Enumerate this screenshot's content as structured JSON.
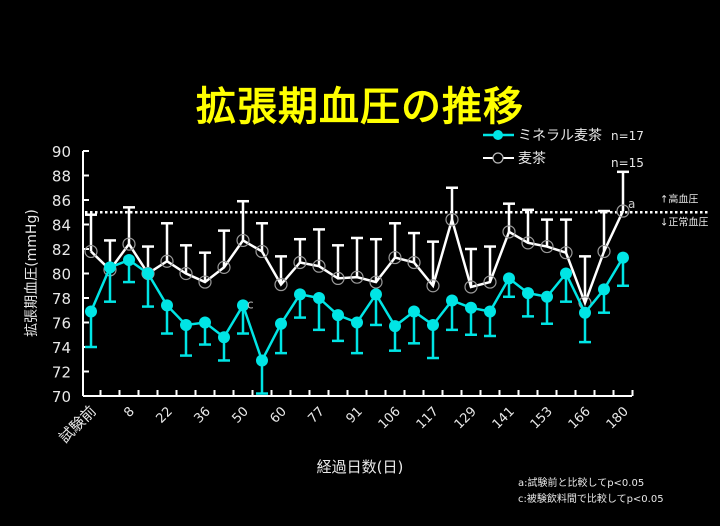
{
  "title": "拡張期血圧の推移",
  "chart_data": {
    "type": "line",
    "title": "拡張期血圧の推移",
    "xlabel": "経過日数(日)",
    "ylabel": "拡張期血圧(mmHg)",
    "ylim": [
      70,
      90
    ],
    "yticks": [
      70,
      72,
      74,
      76,
      78,
      80,
      82,
      84,
      86,
      88,
      90
    ],
    "x_tick_labels": [
      "試験前",
      "8",
      "22",
      "36",
      "50",
      "60",
      "77",
      "91",
      "106",
      "117",
      "129",
      "141",
      "153",
      "166",
      "180"
    ],
    "x_tick_label_every": 2,
    "num_points": 29,
    "reference_line": {
      "value": 85,
      "style": "dotted",
      "label_above": "↑高血圧",
      "label_below": "↓正常血圧"
    },
    "series": [
      {
        "name": "ミネラル麦茶",
        "n_label": "n=17",
        "color": "#00e5e5",
        "marker": "filled-circle",
        "error_direction": "down",
        "values": [
          76.9,
          80.5,
          81.1,
          80.0,
          77.4,
          75.8,
          76.0,
          74.8,
          77.4,
          72.9,
          75.9,
          78.3,
          78.0,
          76.6,
          76.0,
          78.3,
          75.7,
          76.9,
          75.8,
          77.8,
          77.2,
          76.9,
          79.6,
          78.4,
          78.1,
          80.0,
          76.8,
          78.7,
          81.3
        ],
        "error": [
          2.9,
          2.8,
          1.8,
          2.7,
          2.3,
          2.5,
          1.8,
          1.9,
          2.3,
          2.7,
          2.4,
          1.9,
          2.6,
          2.1,
          2.5,
          2.5,
          2.0,
          2.6,
          2.7,
          2.4,
          2.2,
          2.0,
          1.5,
          1.9,
          2.2,
          2.3,
          2.4,
          1.9,
          2.3
        ]
      },
      {
        "name": "麦茶",
        "n_label": "n=15",
        "color": "#ffffff",
        "marker": "open-circle",
        "error_direction": "up",
        "values": [
          81.8,
          80.3,
          82.4,
          80.0,
          81.0,
          80.0,
          79.3,
          80.5,
          82.7,
          81.8,
          79.1,
          80.9,
          80.6,
          79.6,
          79.7,
          79.3,
          81.3,
          80.9,
          79.0,
          84.4,
          78.9,
          79.3,
          83.4,
          82.5,
          82.2,
          81.7,
          77.6,
          81.8,
          85.1
        ],
        "error": [
          3.0,
          2.4,
          3.0,
          2.2,
          3.1,
          2.3,
          2.4,
          3.0,
          3.2,
          2.3,
          2.3,
          1.9,
          3.0,
          2.7,
          3.2,
          3.5,
          2.8,
          2.4,
          3.6,
          2.6,
          3.1,
          2.9,
          2.3,
          2.7,
          2.2,
          2.7,
          3.8,
          3.3,
          3.2
        ]
      }
    ],
    "annotations": [
      {
        "point_index": 8,
        "series": "ミネラル麦茶",
        "text": "c"
      },
      {
        "point_index": 28,
        "series": "麦茶",
        "text": "a"
      }
    ],
    "footnotes": [
      "a:試験前と比較してp<0.05",
      "c:被験飲料間で比較してp<0.05"
    ],
    "legend_position": "upper-right",
    "grid": false
  }
}
